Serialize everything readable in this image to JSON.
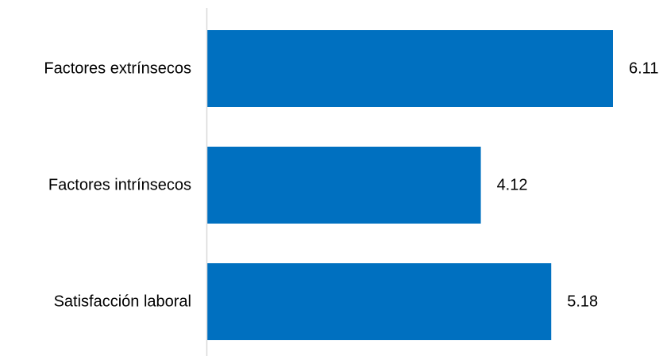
{
  "chart_data": {
    "type": "bar",
    "orientation": "horizontal",
    "categories": [
      "Factores extrínsecos",
      "Factores intrínsecos",
      "Satisfacción laboral"
    ],
    "values": [
      6.11,
      4.12,
      5.18
    ],
    "value_labels": [
      "6.11",
      "4.12",
      "5.18"
    ],
    "title": "",
    "xlabel": "",
    "ylabel": "",
    "xlim": [
      0,
      6.11
    ],
    "grid": false,
    "legend": "none",
    "colors": {
      "bar": "#0070C0",
      "axis": "#D9D9D9",
      "text": "#000000"
    }
  }
}
